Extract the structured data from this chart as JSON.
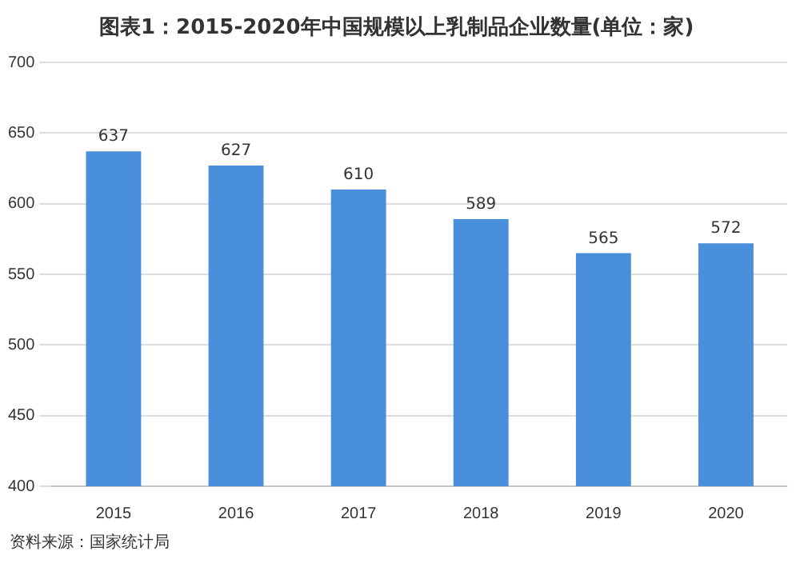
{
  "chart_data": {
    "type": "bar",
    "title": "图表1：2015-2020年中国规模以上乳制品企业数量(单位：家)",
    "categories": [
      "2015",
      "2016",
      "2017",
      "2018",
      "2019",
      "2020"
    ],
    "values": [
      637,
      627,
      610,
      589,
      565,
      572
    ],
    "color": "#4a8fdb",
    "ylim": [
      400,
      700
    ],
    "yticks": [
      400,
      450,
      500,
      550,
      600,
      650,
      700
    ],
    "grid": "y",
    "data_labels": true,
    "annotations": [
      "资料来源：国家统计局"
    ]
  }
}
